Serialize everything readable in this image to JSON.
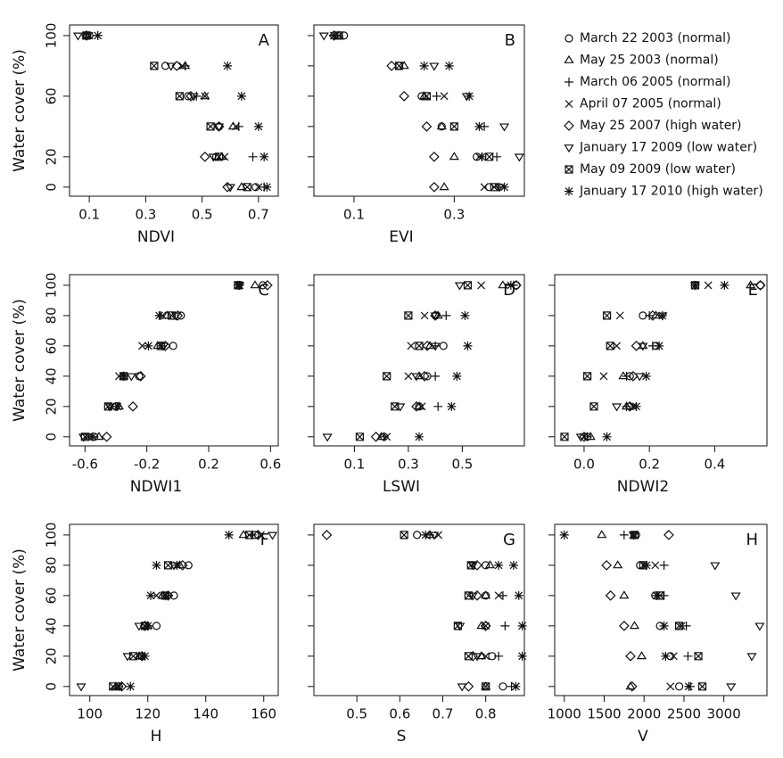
{
  "legend": [
    {
      "name": "March 22 2003 (normal)",
      "marker": "circle"
    },
    {
      "name": "May 25 2003 (normal)",
      "marker": "triangle"
    },
    {
      "name": "March 06 2005 (normal)",
      "marker": "plus"
    },
    {
      "name": "April 07 2005 (normal)",
      "marker": "x"
    },
    {
      "name": "May 25 2007 (high water)",
      "marker": "diamond"
    },
    {
      "name": "January 17 2009 (low water)",
      "marker": "triangle-down"
    },
    {
      "name": "May 09 2009 (low water)",
      "marker": "square-x"
    },
    {
      "name": "January 17 2010 (high water)",
      "marker": "asterisk"
    }
  ],
  "chart_data": [
    {
      "type": "scatter",
      "label": "A",
      "xlabel": "NDVI",
      "ylabel": "Water cover (%)",
      "xlim": [
        0.03,
        0.77
      ],
      "xticks": [
        0.1,
        0.3,
        0.5,
        0.7
      ],
      "ylim": [
        -6,
        107
      ],
      "yticks": [
        0,
        20,
        60,
        100
      ],
      "ytick_labels": true,
      "y": [
        0,
        20,
        40,
        60,
        80,
        100
      ],
      "series": [
        {
          "x": [
            0.69,
            0.55,
            0.56,
            0.45,
            0.37,
            0.1
          ]
        },
        {
          "x": [
            0.64,
            0.57,
            0.61,
            0.51,
            0.44,
            0.09
          ]
        },
        {
          "x": [
            0.72,
            0.68,
            0.63,
            0.48,
            0.44,
            0.13
          ]
        },
        {
          "x": [
            0.7,
            0.58,
            0.62,
            0.51,
            0.43,
            0.1
          ]
        },
        {
          "x": [
            0.59,
            0.51,
            0.56,
            0.46,
            0.41,
            0.09
          ]
        },
        {
          "x": [
            0.6,
            0.54,
            0.56,
            0.47,
            0.39,
            0.06
          ]
        },
        {
          "x": [
            0.66,
            0.56,
            0.53,
            0.42,
            0.33,
            0.09
          ]
        },
        {
          "x": [
            0.73,
            0.72,
            0.7,
            0.64,
            0.59,
            0.13
          ]
        }
      ]
    },
    {
      "type": "scatter",
      "label": "B",
      "xlabel": "EVI",
      "xlim": [
        0.02,
        0.44
      ],
      "xticks": [
        0.1,
        0.3
      ],
      "ylim": [
        -6,
        107
      ],
      "yticks": [
        0,
        20,
        40,
        60,
        80,
        100
      ],
      "ytick_labels": false,
      "y": [
        0,
        20,
        40,
        60,
        80,
        100
      ],
      "series": [
        {
          "x": [
            0.37,
            0.345,
            0.275,
            0.235,
            0.19,
            0.08
          ]
        },
        {
          "x": [
            0.28,
            0.3,
            0.275,
            0.24,
            0.2,
            0.07
          ]
        },
        {
          "x": [
            0.39,
            0.385,
            0.36,
            0.265,
            0.24,
            0.06
          ]
        },
        {
          "x": [
            0.36,
            0.35,
            0.35,
            0.28,
            0.24,
            0.06
          ]
        },
        {
          "x": [
            0.26,
            0.26,
            0.245,
            0.2,
            0.175,
            0.06
          ]
        },
        {
          "x": [
            0.39,
            0.43,
            0.4,
            0.325,
            0.26,
            0.04
          ]
        },
        {
          "x": [
            0.38,
            0.37,
            0.3,
            0.245,
            0.19,
            0.07
          ]
        },
        {
          "x": [
            0.4,
            0.355,
            0.35,
            0.33,
            0.29,
            0.06
          ]
        }
      ]
    },
    {
      "type": "scatter",
      "label": "C",
      "xlabel": "NDWI1",
      "ylabel": "Water cover (%)",
      "xlim": [
        -0.7,
        0.65
      ],
      "xticks": [
        -0.6,
        -0.2,
        0.2,
        0.6
      ],
      "ylim": [
        -6,
        107
      ],
      "yticks": [
        0,
        20,
        40,
        60,
        80,
        100
      ],
      "ytick_labels": true,
      "y": [
        0,
        20,
        40,
        60,
        80,
        100
      ],
      "series": [
        {
          "x": [
            -0.54,
            -0.4,
            -0.25,
            -0.03,
            0.02,
            0.55
          ]
        },
        {
          "x": [
            -0.51,
            -0.38,
            -0.35,
            -0.13,
            -0.07,
            0.5
          ]
        },
        {
          "x": [
            -0.55,
            -0.4,
            -0.35,
            -0.1,
            -0.11,
            0.4
          ]
        },
        {
          "x": [
            -0.58,
            -0.43,
            -0.38,
            -0.23,
            -0.1,
            0.4
          ]
        },
        {
          "x": [
            -0.46,
            -0.29,
            -0.24,
            -0.08,
            0.0,
            0.58
          ]
        },
        {
          "x": [
            -0.61,
            -0.44,
            -0.3,
            -0.09,
            -0.01,
            0.4
          ]
        },
        {
          "x": [
            -0.6,
            -0.45,
            -0.35,
            -0.11,
            -0.04,
            0.39
          ]
        },
        {
          "x": [
            -0.55,
            -0.39,
            -0.35,
            -0.19,
            -0.12,
            0.39
          ]
        }
      ]
    },
    {
      "type": "scatter",
      "label": "D",
      "xlabel": "LSWI",
      "xlim": [
        -0.05,
        0.73
      ],
      "xticks": [
        0.1,
        0.3,
        0.5
      ],
      "ylim": [
        -6,
        107
      ],
      "yticks": [
        0,
        20,
        40,
        60,
        80,
        100
      ],
      "ytick_labels": false,
      "y": [
        0,
        20,
        40,
        60,
        80,
        100
      ],
      "series": [
        {
          "x": [
            0.21,
            0.34,
            0.37,
            0.43,
            0.4,
            0.7
          ]
        },
        {
          "x": [
            0.2,
            0.34,
            0.34,
            0.38,
            0.41,
            0.65
          ]
        },
        {
          "x": [
            0.21,
            0.41,
            0.4,
            0.4,
            0.44,
            0.69
          ]
        },
        {
          "x": [
            0.22,
            0.35,
            0.3,
            0.31,
            0.36,
            0.57
          ]
        },
        {
          "x": [
            0.18,
            0.33,
            0.36,
            0.37,
            0.4,
            0.7
          ]
        },
        {
          "x": [
            0.0,
            0.27,
            0.33,
            0.4,
            0.4,
            0.49
          ]
        },
        {
          "x": [
            0.12,
            0.25,
            0.22,
            0.34,
            0.3,
            0.52
          ]
        },
        {
          "x": [
            0.34,
            0.46,
            0.48,
            0.52,
            0.51,
            0.68
          ]
        }
      ]
    },
    {
      "type": "scatter",
      "label": "E",
      "xlabel": "NDWI2",
      "xlim": [
        -0.09,
        0.56
      ],
      "xticks": [
        {
          "value": 0,
          "label": "0.0"
        },
        0.2,
        0.4
      ],
      "ylim": [
        -6,
        107
      ],
      "yticks": [
        0,
        20,
        40,
        60,
        80,
        100
      ],
      "ytick_labels": false,
      "y": [
        0,
        20,
        40,
        60,
        80,
        100
      ],
      "series": [
        {
          "x": [
            0.01,
            0.14,
            0.14,
            0.22,
            0.18,
            0.54
          ]
        },
        {
          "x": [
            0.02,
            0.13,
            0.12,
            0.18,
            0.22,
            0.51
          ]
        },
        {
          "x": [
            0.01,
            0.13,
            0.13,
            0.21,
            0.2,
            0.34
          ]
        },
        {
          "x": [
            0.0,
            0.15,
            0.06,
            0.1,
            0.11,
            0.38
          ]
        },
        {
          "x": [
            0.0,
            0.14,
            0.15,
            0.16,
            0.21,
            0.54
          ]
        },
        {
          "x": [
            -0.01,
            0.1,
            0.17,
            0.18,
            0.24,
            0.34
          ]
        },
        {
          "x": [
            -0.06,
            0.03,
            0.01,
            0.08,
            0.07,
            0.34
          ]
        },
        {
          "x": [
            0.07,
            0.16,
            0.19,
            0.23,
            0.24,
            0.43
          ]
        }
      ]
    },
    {
      "type": "scatter",
      "label": "F",
      "xlabel": "H",
      "ylabel": "Water cover (%)",
      "xlim": [
        93,
        165
      ],
      "xticks": [
        100,
        120,
        140,
        160
      ],
      "ylim": [
        -6,
        107
      ],
      "yticks": [
        0,
        20,
        40,
        60,
        80,
        100
      ],
      "ytick_labels": true,
      "y": [
        0,
        20,
        40,
        60,
        80,
        100
      ],
      "series": [
        {
          "x": [
            110,
            118,
            123,
            129,
            134,
            157
          ]
        },
        {
          "x": [
            109,
            117,
            120,
            125,
            131,
            153
          ]
        },
        {
          "x": [
            110,
            118,
            120,
            127,
            130,
            156
          ]
        },
        {
          "x": [
            110,
            118,
            119,
            123,
            130,
            159
          ]
        },
        {
          "x": [
            111,
            118,
            119,
            127,
            132,
            158
          ]
        },
        {
          "x": [
            97,
            113,
            117,
            126,
            129,
            163
          ]
        },
        {
          "x": [
            108,
            115,
            119,
            126,
            127,
            155
          ]
        },
        {
          "x": [
            114,
            119,
            120,
            121,
            123,
            148
          ]
        }
      ]
    },
    {
      "type": "scatter",
      "label": "G",
      "xlabel": "S",
      "xlim": [
        0.4,
        0.89
      ],
      "xticks": [
        0.5,
        0.6,
        0.7,
        0.8
      ],
      "ylim": [
        -6,
        107
      ],
      "yticks": [
        0,
        20,
        40,
        60,
        80,
        100
      ],
      "ytick_labels": false,
      "y": [
        0,
        20,
        40,
        60,
        80,
        100
      ],
      "series": [
        {
          "x": [
            0.84,
            0.815,
            0.8,
            0.8,
            0.8,
            0.64
          ]
        },
        {
          "x": [
            0.8,
            0.79,
            0.79,
            0.8,
            0.81,
            0.67
          ]
        },
        {
          "x": [
            0.86,
            0.83,
            0.845,
            0.84,
            0.83,
            0.67
          ]
        },
        {
          "x": [
            0.87,
            0.8,
            0.8,
            0.83,
            0.83,
            0.69
          ]
        },
        {
          "x": [
            0.76,
            0.77,
            0.8,
            0.78,
            0.78,
            0.43
          ]
        },
        {
          "x": [
            0.745,
            0.78,
            0.74,
            0.77,
            0.77,
            0.68
          ]
        },
        {
          "x": [
            0.8,
            0.76,
            0.735,
            0.76,
            0.766,
            0.61
          ]
        },
        {
          "x": [
            0.87,
            0.885,
            0.885,
            0.877,
            0.865,
            0.66
          ]
        }
      ]
    },
    {
      "type": "scatter",
      "label": "H",
      "xlabel": "V",
      "xlim": [
        880,
        3540
      ],
      "xticks": [
        1000,
        1500,
        2000,
        2500,
        3000
      ],
      "ylim": [
        -6,
        107
      ],
      "yticks": [
        0,
        20,
        40,
        60,
        80,
        100
      ],
      "ytick_labels": false,
      "y": [
        0,
        20,
        40,
        60,
        80,
        100
      ],
      "series": [
        {
          "x": [
            2440,
            2330,
            2200,
            2140,
            1950,
            1900
          ]
        },
        {
          "x": [
            1830,
            1970,
            1880,
            1750,
            1670,
            1470
          ]
        },
        {
          "x": [
            2580,
            2550,
            2530,
            2250,
            2250,
            1750
          ]
        },
        {
          "x": [
            2330,
            2370,
            2470,
            2160,
            2140,
            1860
          ]
        },
        {
          "x": [
            1850,
            1830,
            1750,
            1580,
            1530,
            2310
          ]
        },
        {
          "x": [
            3090,
            3350,
            3450,
            3150,
            2890,
            1870
          ]
        },
        {
          "x": [
            2730,
            2680,
            2440,
            2200,
            1990,
            1880
          ]
        },
        {
          "x": [
            2560,
            2270,
            2250,
            2160,
            2030,
            1000
          ]
        }
      ]
    }
  ]
}
